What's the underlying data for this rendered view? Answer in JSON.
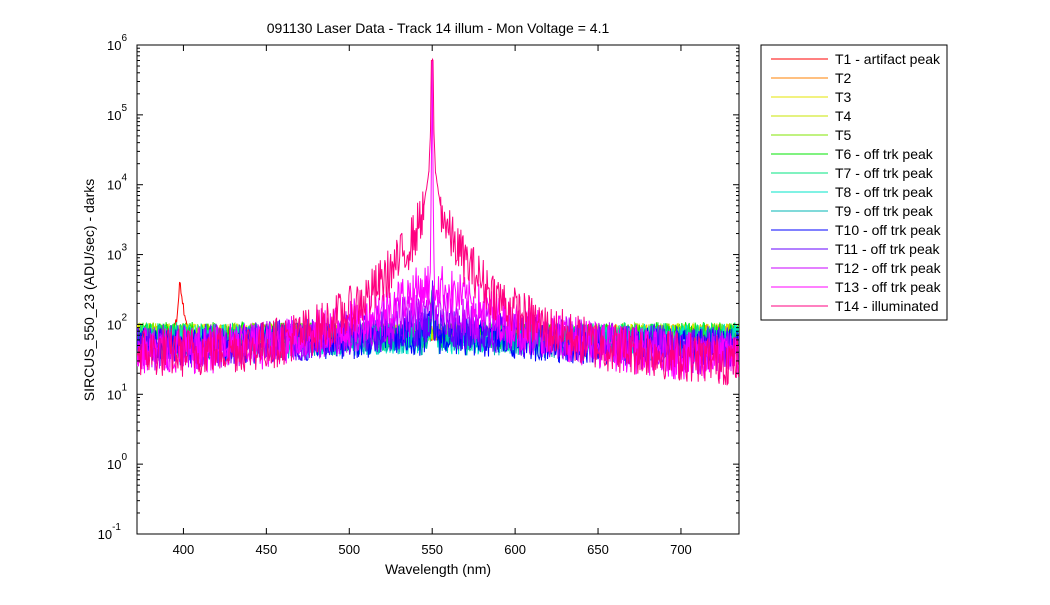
{
  "chart_data": {
    "type": "line",
    "title": "091130 Laser Data - Track 14 illum - Mon Voltage = 4.1",
    "xlabel": "Wavelength (nm)",
    "ylabel": "SIRCUS_550_23  (ADU/sec) - darks",
    "xlim": [
      372,
      735
    ],
    "ylim": [
      0.1,
      1000000
    ],
    "y_scale": "log",
    "grid": false,
    "legend_position": "outside-right",
    "x_ticks": [
      {
        "label": "400",
        "value": 400
      },
      {
        "label": "450",
        "value": 450
      },
      {
        "label": "500",
        "value": 500
      },
      {
        "label": "550",
        "value": 550
      },
      {
        "label": "600",
        "value": 600
      },
      {
        "label": "650",
        "value": 650
      },
      {
        "label": "700",
        "value": 700
      }
    ],
    "y_ticks": [
      {
        "base": "10",
        "exp": "-1",
        "value": 0.1
      },
      {
        "base": "10",
        "exp": "0",
        "value": 1
      },
      {
        "base": "10",
        "exp": "1",
        "value": 10
      },
      {
        "base": "10",
        "exp": "2",
        "value": 100
      },
      {
        "base": "10",
        "exp": "3",
        "value": 1000
      },
      {
        "base": "10",
        "exp": "4",
        "value": 10000
      },
      {
        "base": "10",
        "exp": "5",
        "value": 100000
      },
      {
        "base": "10",
        "exp": "6",
        "value": 1000000
      }
    ],
    "series": [
      {
        "name": "T1 - artifact peak",
        "color": "#ff0000",
        "x": [
          372,
          385,
          393,
          396,
          398,
          400,
          403,
          410,
          450,
          500,
          550,
          600,
          650,
          700,
          735
        ],
        "y": [
          75,
          72,
          75,
          120,
          420,
          180,
          80,
          75,
          72,
          70,
          70,
          72,
          75,
          78,
          80
        ]
      },
      {
        "name": "T2",
        "color": "#ff8000",
        "x": [
          372,
          400,
          450,
          500,
          550,
          600,
          650,
          700,
          735
        ],
        "y": [
          80,
          80,
          80,
          78,
          78,
          78,
          78,
          80,
          80
        ]
      },
      {
        "name": "T3",
        "color": "#e6e600",
        "x": [
          372,
          400,
          450,
          500,
          550,
          600,
          650,
          700,
          735
        ],
        "y": [
          78,
          78,
          78,
          76,
          76,
          76,
          76,
          78,
          78
        ]
      },
      {
        "name": "T4",
        "color": "#c8e600",
        "x": [
          372,
          400,
          450,
          500,
          550,
          600,
          650,
          700,
          735
        ],
        "y": [
          75,
          75,
          75,
          74,
          74,
          74,
          74,
          75,
          75
        ]
      },
      {
        "name": "T5",
        "color": "#80e600",
        "x": [
          372,
          400,
          450,
          500,
          550,
          600,
          650,
          700,
          735
        ],
        "y": [
          72,
          72,
          72,
          71,
          71,
          71,
          71,
          72,
          72
        ]
      },
      {
        "name": "T6 - off trk peak",
        "color": "#00e600",
        "x": [
          372,
          400,
          450,
          500,
          545,
          549,
          550,
          551,
          555,
          600,
          650,
          700,
          735
        ],
        "y": [
          70,
          70,
          69,
          68,
          70,
          90,
          300,
          90,
          70,
          68,
          68,
          70,
          70
        ]
      },
      {
        "name": "T7 - off trk peak",
        "color": "#00e680",
        "x": [
          372,
          400,
          450,
          500,
          545,
          549,
          550,
          551,
          555,
          600,
          650,
          700,
          735
        ],
        "y": [
          66,
          66,
          66,
          66,
          68,
          90,
          250,
          90,
          68,
          66,
          65,
          65,
          66
        ]
      },
      {
        "name": "T8 - off trk peak",
        "color": "#00e6c8",
        "x": [
          372,
          400,
          450,
          500,
          545,
          549,
          550,
          551,
          555,
          600,
          650,
          700,
          735
        ],
        "y": [
          60,
          60,
          60,
          62,
          64,
          90,
          250,
          90,
          64,
          62,
          60,
          60,
          60
        ]
      },
      {
        "name": "T9 - off trk peak",
        "color": "#00b4b4",
        "x": [
          372,
          400,
          450,
          500,
          545,
          549,
          550,
          551,
          555,
          600,
          650,
          700,
          735
        ],
        "y": [
          55,
          55,
          57,
          62,
          65,
          90,
          280,
          90,
          65,
          60,
          56,
          54,
          54
        ]
      },
      {
        "name": "T10 - off trk peak",
        "color": "#0000ff",
        "x": [
          372,
          400,
          450,
          500,
          545,
          549,
          550,
          551,
          555,
          600,
          650,
          700,
          735
        ],
        "y": [
          48,
          48,
          52,
          60,
          68,
          90,
          250,
          90,
          68,
          58,
          50,
          46,
          46
        ]
      },
      {
        "name": "T11 - off trk peak",
        "color": "#6400ff",
        "x": [
          372,
          400,
          450,
          500,
          540,
          549,
          550,
          551,
          560,
          600,
          650,
          700,
          735
        ],
        "y": [
          50,
          50,
          55,
          70,
          90,
          110,
          300,
          110,
          90,
          70,
          55,
          48,
          48
        ]
      },
      {
        "name": "T12 - off trk peak",
        "color": "#c800ff",
        "x": [
          372,
          400,
          450,
          500,
          530,
          545,
          549,
          550,
          551,
          555,
          570,
          600,
          650,
          700,
          735
        ],
        "y": [
          45,
          45,
          55,
          80,
          120,
          145,
          160,
          350,
          160,
          145,
          120,
          80,
          55,
          40,
          40
        ]
      },
      {
        "name": "T13 - off trk peak",
        "color": "#ff00ff",
        "x": [
          372,
          400,
          450,
          500,
          520,
          535,
          545,
          549,
          550,
          551,
          555,
          565,
          580,
          600,
          650,
          700,
          735
        ],
        "y": [
          40,
          40,
          50,
          100,
          170,
          260,
          340,
          380,
          600000,
          380,
          340,
          260,
          170,
          100,
          50,
          35,
          35
        ]
      },
      {
        "name": "T14 - illuminated",
        "color": "#ff0080",
        "x": [
          372,
          400,
          450,
          480,
          500,
          515,
          530,
          540,
          545,
          548,
          549,
          549.5,
          550,
          550.5,
          551,
          552,
          555,
          560,
          570,
          585,
          600,
          620,
          650,
          700,
          735
        ],
        "y": [
          40,
          40,
          50,
          85,
          150,
          300,
          800,
          2000,
          5000,
          15000,
          60000,
          600000,
          600000,
          600000,
          60000,
          15000,
          5000,
          2000,
          800,
          300,
          150,
          85,
          50,
          35,
          30
        ]
      }
    ]
  }
}
